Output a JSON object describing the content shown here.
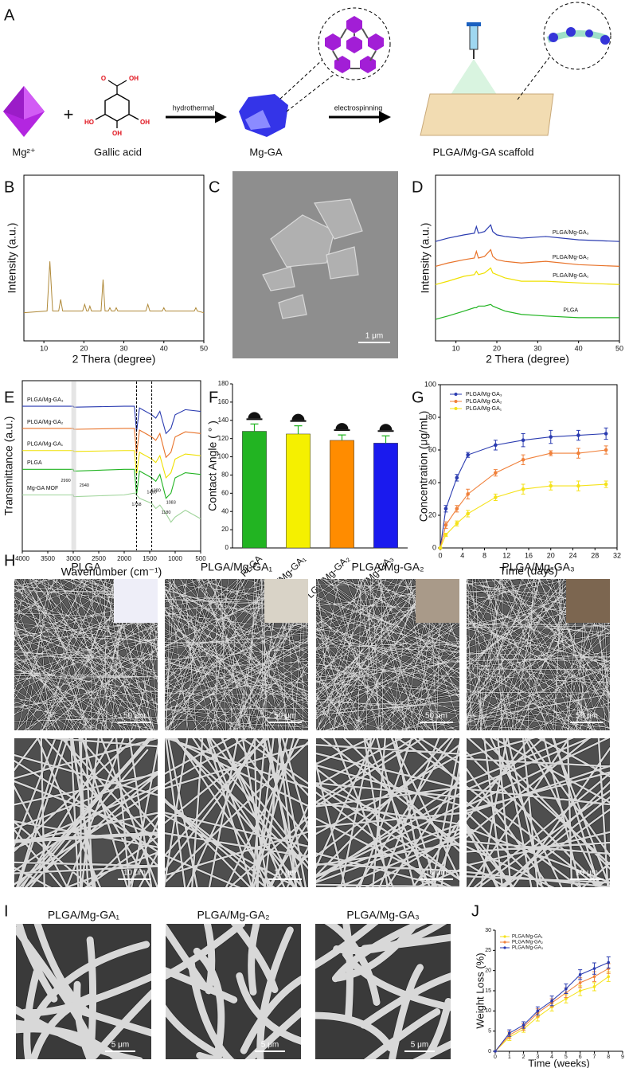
{
  "panel_labels": [
    "A",
    "B",
    "C",
    "D",
    "E",
    "F",
    "G",
    "H",
    "I",
    "J"
  ],
  "scheme": {
    "ion": "Mg²⁺",
    "ligand": "Gallic acid",
    "step1": "hydrothermal",
    "product": "Mg-GA",
    "step2": "electrospinning",
    "scaffold": "PLGA/Mg-GA scaffold",
    "atoms": [
      "O",
      "OH",
      "HO",
      "OH",
      "OH"
    ]
  },
  "sem_c": {
    "scale_bar": "1 μm"
  },
  "sem_h": {
    "titles": [
      "PLGA",
      "PLGA/Mg-GA₁",
      "PLGA/Mg-GA₂",
      "PLGA/Mg-GA₃"
    ],
    "scale_bars_top": [
      "50 μm",
      "50 μm",
      "50 μm",
      "50 μm"
    ],
    "scale_bars_bottom": [
      "10 μm",
      "10 μm",
      "10 μm",
      "10 μm"
    ]
  },
  "sem_i": {
    "titles": [
      "PLGA/Mg-GA₁",
      "PLGA/Mg-GA₂",
      "PLGA/Mg-GA₃"
    ],
    "scale_bars": [
      "5 μm",
      "5 μm",
      "5 μm"
    ]
  },
  "chart_data": [
    {
      "type": "line",
      "xlabel": "2 Thera (degree)",
      "ylabel": "Intensity (a.u.)",
      "xlim": [
        5,
        50
      ],
      "xticks": [
        10,
        20,
        30,
        40,
        50
      ],
      "ylim": [
        0,
        100
      ],
      "x": [
        5,
        10.8,
        11.5,
        12.2,
        13.7,
        14.2,
        14.7,
        19.7,
        20.2,
        20.7,
        21.1,
        21.5,
        21.9,
        24.3,
        24.8,
        25.3,
        26.1,
        26.5,
        26.9,
        27.7,
        28.1,
        28.5,
        35.5,
        36,
        36.5,
        39.6,
        40,
        40.4,
        47.6,
        48,
        48.4,
        50
      ],
      "series": [
        {
          "color": "#b08a3a",
          "values": [
            17,
            18,
            48,
            18,
            18,
            25,
            18,
            18,
            22,
            18,
            18,
            21,
            18,
            18,
            37,
            18,
            18,
            20,
            18,
            18,
            20,
            18,
            18,
            22,
            18,
            18,
            20,
            18,
            18,
            20,
            18,
            17
          ]
        }
      ]
    },
    {
      "type": "line",
      "xlabel": "2 Thera (degree)",
      "ylabel": "Intensity (a.u.)",
      "xlim": [
        5,
        50
      ],
      "xticks": [
        10,
        20,
        30,
        40,
        50
      ],
      "ylim": [
        0,
        100
      ],
      "x": [
        5,
        8,
        12,
        14.5,
        15,
        15.5,
        17,
        18.5,
        19,
        20,
        22,
        26,
        32,
        40,
        50
      ],
      "series": [
        {
          "name": "PLGA/Mg-GA₃",
          "color": "#2a3bb0",
          "values": [
            60,
            62,
            64,
            65,
            69,
            65,
            66,
            70,
            66,
            64,
            63,
            62,
            63,
            61,
            60
          ]
        },
        {
          "name": "PLGA/Mg-GA₂",
          "color": "#e8732a",
          "values": [
            45,
            47,
            49,
            50,
            54,
            50,
            51,
            55,
            51,
            49,
            48,
            47,
            48,
            46,
            45
          ]
        },
        {
          "name": "PLGA/Mg-GA₁",
          "color": "#efe000",
          "values": [
            34,
            36,
            39,
            40,
            42,
            40,
            41,
            44,
            41,
            40,
            38,
            36,
            36,
            35,
            34
          ]
        },
        {
          "name": "PLGA",
          "color": "#22b422",
          "values": [
            13,
            15,
            18,
            20,
            20,
            21,
            21,
            22,
            21,
            20,
            18,
            16,
            15,
            14,
            14
          ]
        }
      ]
    },
    {
      "type": "line",
      "xlabel": "Wavenumber (cm⁻¹)",
      "ylabel": "Transmittance (a.u.)",
      "xlim": [
        4000,
        500
      ],
      "xticks": [
        4000,
        3500,
        3000,
        2500,
        2000,
        1500,
        1000,
        500
      ],
      "ylim": [
        0,
        100
      ],
      "x": [
        4000,
        3000,
        2990,
        2940,
        2000,
        1800,
        1758,
        1700,
        1460,
        1380,
        1300,
        1180,
        1083,
        1000,
        800,
        500
      ],
      "series": [
        {
          "name": "PLGA/Mg-GA₃",
          "color": "#2a3bb0",
          "values": [
            85,
            85,
            84.5,
            84.5,
            85,
            85,
            70,
            84,
            80,
            78,
            82,
            69,
            72,
            80,
            83,
            82
          ]
        },
        {
          "name": "PLGA/Mg-GA₂",
          "color": "#e8732a",
          "values": [
            72,
            72,
            71.5,
            71.5,
            72,
            72,
            57,
            71,
            67,
            65,
            69,
            55,
            58,
            67,
            70,
            69
          ]
        },
        {
          "name": "PLGA/Mg-GA₁",
          "color": "#efe000",
          "values": [
            59,
            59,
            58.5,
            58.5,
            59,
            59,
            45,
            58,
            54,
            52,
            56,
            43,
            46,
            54,
            57,
            56
          ]
        },
        {
          "name": "PLGA",
          "color": "#22b422",
          "values": [
            48,
            48,
            47,
            47,
            48,
            48,
            33,
            47,
            43,
            41,
            45,
            31,
            34,
            43,
            46,
            45
          ]
        },
        {
          "name": "Mg-GA MOF",
          "color": "#9fd49a",
          "values": [
            33,
            33,
            32,
            32,
            33,
            34,
            33,
            31,
            28,
            25,
            27,
            22,
            17,
            20,
            24,
            19
          ]
        }
      ],
      "annotations": [
        2990,
        2940,
        1758,
        1460,
        1380,
        1180,
        1083
      ],
      "reference_lines": [
        1758,
        1460
      ]
    },
    {
      "type": "bar",
      "ylabel": "Contact Angle ( ° )",
      "categories": [
        "PLGA",
        "PLGA/Mg-GA₁",
        "PLGA/Mg-GA₂",
        "PLGA/Mg-GA₃"
      ],
      "values": [
        128,
        125,
        118,
        115
      ],
      "errors": [
        8,
        9,
        6,
        8
      ],
      "colors": [
        "#22b422",
        "#f5f000",
        "#ff8c00",
        "#1a1aee"
      ],
      "ylim": [
        0,
        180
      ],
      "yticks": [
        0,
        20,
        40,
        60,
        80,
        100,
        120,
        140,
        160,
        180
      ]
    },
    {
      "type": "line",
      "xlabel": "Time (days)",
      "ylabel": "Concentration (μg/mL)",
      "xlim": [
        0,
        32
      ],
      "xticks": [
        0,
        4,
        8,
        12,
        16,
        20,
        24,
        28,
        32
      ],
      "ylim": [
        0,
        100
      ],
      "yticks": [
        0,
        20,
        40,
        60,
        80,
        100
      ],
      "x": [
        0,
        1,
        3,
        5,
        10,
        15,
        20,
        25,
        30
      ],
      "markers": true,
      "series": [
        {
          "name": "PLGA/Mg-GA₃",
          "color": "#2a3bb0",
          "values": [
            0,
            24,
            43,
            57,
            63,
            66,
            68,
            69,
            70
          ],
          "errors": [
            0,
            2,
            2,
            1.5,
            3,
            4,
            4,
            3,
            3.5
          ]
        },
        {
          "name": "PLGA/Mg-GA₂",
          "color": "#f0803a",
          "values": [
            0,
            14,
            24,
            33,
            46,
            54,
            58,
            58,
            60
          ],
          "errors": [
            0,
            2,
            2,
            3,
            2,
            3,
            1.5,
            3,
            2.5
          ]
        },
        {
          "name": "PLGA/Mg-GA₁",
          "color": "#f5e21a",
          "values": [
            0,
            8,
            15,
            21,
            31,
            36,
            38,
            38,
            39
          ],
          "errors": [
            0,
            1,
            1.5,
            2,
            2,
            3,
            2.5,
            3,
            2
          ]
        }
      ]
    },
    {
      "type": "line",
      "xlabel": "Time (weeks)",
      "ylabel": "Weight Loss (%)",
      "xlim": [
        0,
        9
      ],
      "xticks": [
        0,
        1,
        2,
        3,
        4,
        5,
        6,
        7,
        8,
        9
      ],
      "ylim": [
        0,
        30
      ],
      "yticks": [
        0,
        5,
        10,
        15,
        20,
        25,
        30
      ],
      "x": [
        0,
        1,
        2,
        3,
        4,
        5,
        6,
        7,
        8
      ],
      "markers": true,
      "series": [
        {
          "name": "PLGA/Mg-GA₁",
          "color": "#f5e21a",
          "values": [
            0,
            3.5,
            5.5,
            8.5,
            11,
            13,
            15,
            16,
            18.5
          ],
          "errors": [
            0,
            0.8,
            0.8,
            1,
            1,
            1,
            1.2,
            1,
            1.2
          ]
        },
        {
          "name": "PLGA/Mg-GA₂",
          "color": "#f0803a",
          "values": [
            0,
            4,
            6,
            9.5,
            12,
            14.5,
            17,
            18.5,
            20.5
          ],
          "errors": [
            0,
            0.8,
            0.8,
            1,
            1,
            1.2,
            1.2,
            1.2,
            1.2
          ]
        },
        {
          "name": "PLGA/Mg-GA₃",
          "color": "#2a3bb0",
          "values": [
            0,
            4.5,
            6.5,
            10,
            12.5,
            15.5,
            19,
            20.5,
            22
          ],
          "errors": [
            0,
            0.8,
            0.8,
            1,
            1.2,
            1.2,
            1.2,
            1.4,
            1.4
          ]
        }
      ]
    }
  ]
}
